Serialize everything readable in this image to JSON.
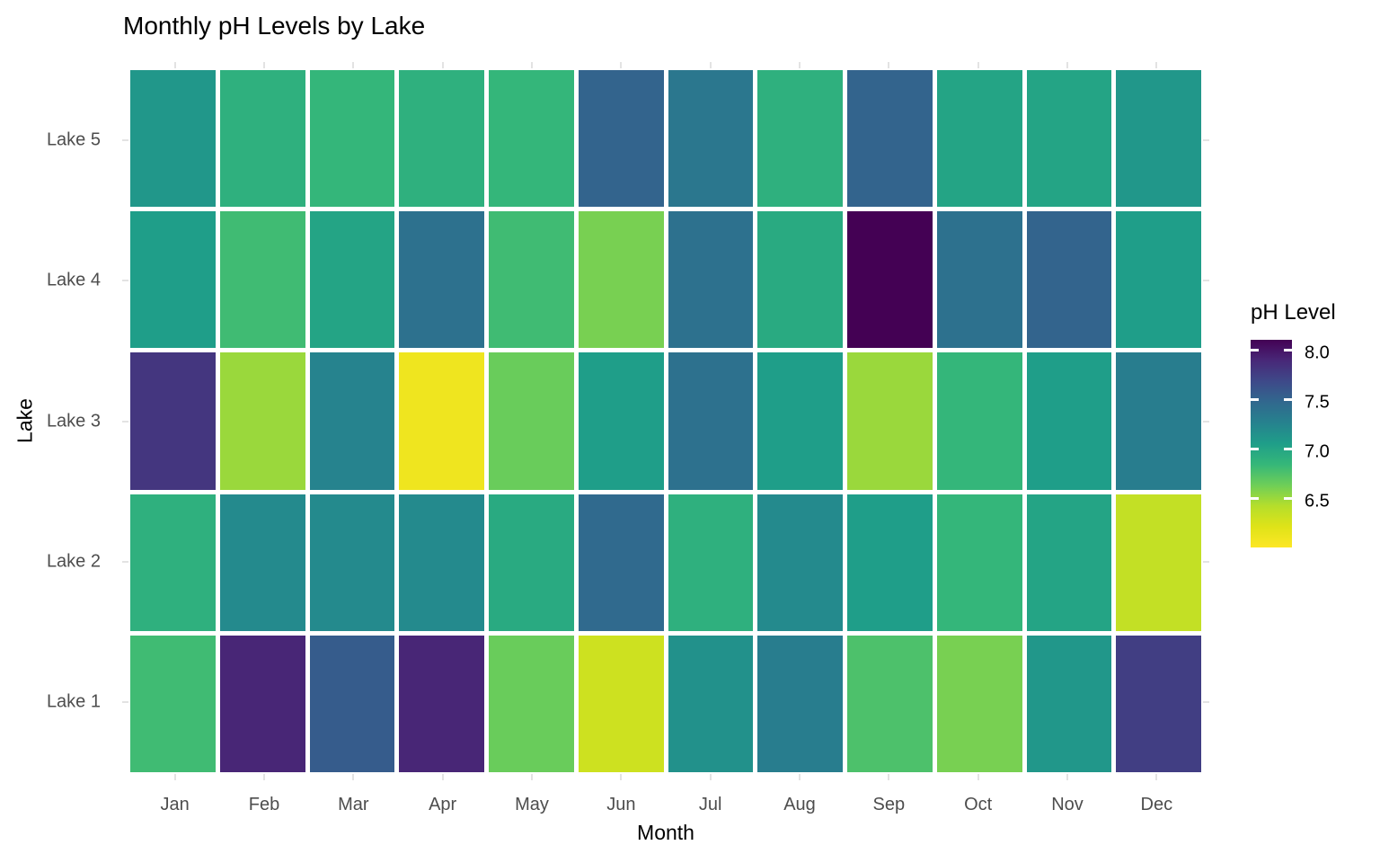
{
  "title": "Monthly pH Levels by Lake",
  "chart_data": {
    "type": "heatmap",
    "title": "Monthly pH Levels by Lake",
    "xlabel": "Month",
    "ylabel": "Lake",
    "x": [
      "Jan",
      "Feb",
      "Mar",
      "Apr",
      "May",
      "Jun",
      "Jul",
      "Aug",
      "Sep",
      "Oct",
      "Nov",
      "Dec"
    ],
    "y": [
      "Lake 1",
      "Lake 2",
      "Lake 3",
      "Lake 4",
      "Lake 5"
    ],
    "y_display_order_top_to_bottom": [
      "Lake 5",
      "Lake 4",
      "Lake 3",
      "Lake 2",
      "Lake 1"
    ],
    "series": [
      {
        "name": "Lake 1",
        "values": [
          6.8,
          7.9,
          7.55,
          7.9,
          6.65,
          6.3,
          7.15,
          7.3,
          6.75,
          6.6,
          7.1,
          7.75
        ]
      },
      {
        "name": "Lake 2",
        "values": [
          6.9,
          7.2,
          7.2,
          7.2,
          6.95,
          7.45,
          6.9,
          7.2,
          7.05,
          6.85,
          7.0,
          6.35
        ]
      },
      {
        "name": "Lake 3",
        "values": [
          7.8,
          6.5,
          7.25,
          6.1,
          6.65,
          7.05,
          7.4,
          7.05,
          6.5,
          6.85,
          7.05,
          7.3
        ]
      },
      {
        "name": "Lake 4",
        "values": [
          7.05,
          6.8,
          7.0,
          7.4,
          6.8,
          6.6,
          7.4,
          6.95,
          8.1,
          7.4,
          7.5,
          7.05
        ]
      },
      {
        "name": "Lake 5",
        "values": [
          7.1,
          6.9,
          6.85,
          6.9,
          6.85,
          7.5,
          7.35,
          6.9,
          7.5,
          7.0,
          7.0,
          7.1
        ]
      }
    ],
    "legend": {
      "title": "pH Level",
      "position": "right",
      "ticks": [
        8.0,
        7.5,
        7.0,
        6.5
      ],
      "tick_decimals": 1
    },
    "color_scale": {
      "name": "viridis",
      "direction": "reversed",
      "domain": [
        6.0,
        8.1
      ],
      "high_color": "#440154",
      "low_color": "#fde725"
    },
    "grid": false,
    "tile_border_color": "#ffffff",
    "axis_tick_color": "#e3e3e3",
    "axis_label_color": "#4d4d4d"
  }
}
